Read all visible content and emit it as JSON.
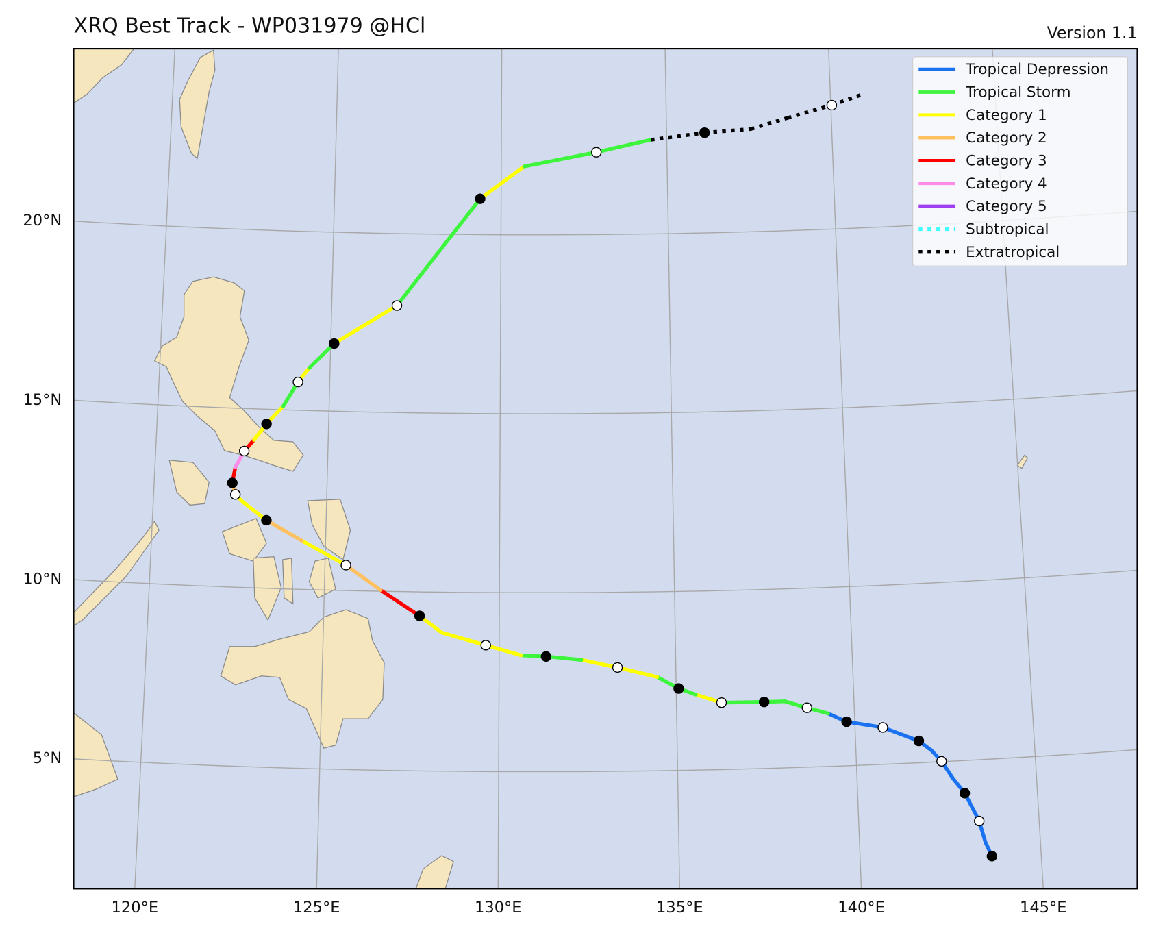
{
  "chart_data": {
    "type": "track-map",
    "title": "XRQ Best Track - WP031979  @HCl",
    "version": "Version 1.1",
    "xlim": [
      118.3,
      147.6
    ],
    "ylim": [
      1.73,
      25.2
    ],
    "xticks": [
      {
        "value": 120,
        "label": "120°E"
      },
      {
        "value": 125,
        "label": "125°E"
      },
      {
        "value": 130,
        "label": "130°E"
      },
      {
        "value": 135,
        "label": "135°E"
      },
      {
        "value": 140,
        "label": "140°E"
      },
      {
        "value": 145,
        "label": "145°E"
      }
    ],
    "yticks": [
      {
        "value": 5,
        "label": "5°N"
      },
      {
        "value": 10,
        "label": "10°N"
      },
      {
        "value": 15,
        "label": "15°N"
      },
      {
        "value": 20,
        "label": "20°N"
      }
    ],
    "grid": true,
    "legend_position": "upper right",
    "series": [
      {
        "name": "Tropical Depression",
        "color": "#1a72f0",
        "style": "solid"
      },
      {
        "name": "Tropical Storm",
        "color": "#3cf53c",
        "style": "solid"
      },
      {
        "name": "Category 1",
        "color": "#ffff00",
        "style": "solid"
      },
      {
        "name": "Category 2",
        "color": "#ffc060",
        "style": "solid"
      },
      {
        "name": "Category 3",
        "color": "#ff0000",
        "style": "solid"
      },
      {
        "name": "Category 4",
        "color": "#ff8ce8",
        "style": "solid"
      },
      {
        "name": "Category 5",
        "color": "#a040f0",
        "style": "solid"
      },
      {
        "name": "Subtropical",
        "color": "#40ffff",
        "style": "dotted"
      },
      {
        "name": "Extratropical",
        "color": "#000000",
        "style": "dotted"
      }
    ],
    "track": [
      {
        "lon": 143.64,
        "lat": 2.29,
        "status": "Tropical Depression",
        "marker": "filled"
      },
      {
        "lon": 143.48,
        "lat": 2.69,
        "status": "Tropical Depression",
        "marker": null
      },
      {
        "lon": 143.34,
        "lat": 3.29,
        "status": "Tropical Depression",
        "marker": "open"
      },
      {
        "lon": 142.98,
        "lat": 4.09,
        "status": "Tropical Depression",
        "marker": "filled"
      },
      {
        "lon": 142.67,
        "lat": 4.52,
        "status": "Tropical Depression",
        "marker": null
      },
      {
        "lon": 142.38,
        "lat": 5.01,
        "status": "Tropical Depression",
        "marker": "open"
      },
      {
        "lon": 142.11,
        "lat": 5.33,
        "status": "Tropical Depression",
        "marker": null
      },
      {
        "lon": 141.77,
        "lat": 5.61,
        "status": "Tropical Depression",
        "marker": "filled"
      },
      {
        "lon": 140.78,
        "lat": 6.03,
        "status": "Tropical Depression",
        "marker": "open"
      },
      {
        "lon": 139.77,
        "lat": 6.23,
        "status": "Tropical Depression",
        "marker": "filled"
      },
      {
        "lon": 139.26,
        "lat": 6.48,
        "status": "Tropical Storm",
        "marker": null
      },
      {
        "lon": 138.67,
        "lat": 6.66,
        "status": "Tropical Storm",
        "marker": "open"
      },
      {
        "lon": 138.05,
        "lat": 6.86,
        "status": "Tropical Storm",
        "marker": null
      },
      {
        "lon": 137.47,
        "lat": 6.86,
        "status": "Tropical Storm",
        "marker": "filled"
      },
      {
        "lon": 136.27,
        "lat": 6.87,
        "status": "Category 1",
        "marker": "open"
      },
      {
        "lon": 135.55,
        "lat": 7.11,
        "status": "Tropical Storm",
        "marker": null
      },
      {
        "lon": 135.07,
        "lat": 7.29,
        "status": "Tropical Storm",
        "marker": "filled"
      },
      {
        "lon": 134.47,
        "lat": 7.62,
        "status": "Category 1",
        "marker": null
      },
      {
        "lon": 133.35,
        "lat": 7.9,
        "status": "Category 1",
        "marker": "open"
      },
      {
        "lon": 132.33,
        "lat": 8.12,
        "status": "Tropical Storm",
        "marker": null
      },
      {
        "lon": 131.33,
        "lat": 8.22,
        "status": "Tropical Storm",
        "marker": "filled"
      },
      {
        "lon": 130.63,
        "lat": 8.25,
        "status": "Category 1",
        "marker": null
      },
      {
        "lon": 129.62,
        "lat": 8.53,
        "status": "Category 1",
        "marker": "open"
      },
      {
        "lon": 128.37,
        "lat": 8.87,
        "status": "Category 1",
        "marker": null
      },
      {
        "lon": 127.73,
        "lat": 9.33,
        "status": "Category 3",
        "marker": "filled"
      },
      {
        "lon": 126.61,
        "lat": 10.03,
        "status": "Category 2",
        "marker": null
      },
      {
        "lon": 125.6,
        "lat": 10.71,
        "status": "Category 1",
        "marker": "open"
      },
      {
        "lon": 124.32,
        "lat": 11.36,
        "status": "Category 2",
        "marker": null
      },
      {
        "lon": 123.28,
        "lat": 11.9,
        "status": "Category 1",
        "marker": "filled"
      },
      {
        "lon": 122.58,
        "lat": 12.39,
        "status": "Category 1",
        "marker": null
      },
      {
        "lon": 122.36,
        "lat": 12.59,
        "status": "Category 2",
        "marker": "open"
      },
      {
        "lon": 122.26,
        "lat": 12.91,
        "status": "Category 3",
        "marker": "filled"
      },
      {
        "lon": 122.33,
        "lat": 13.35,
        "status": "Category 4",
        "marker": null
      },
      {
        "lon": 122.57,
        "lat": 13.81,
        "status": "Category 3",
        "marker": "open"
      },
      {
        "lon": 122.84,
        "lat": 14.13,
        "status": "Category 1",
        "marker": null
      },
      {
        "lon": 123.19,
        "lat": 14.59,
        "status": "Category 1",
        "marker": "filled"
      },
      {
        "lon": 123.66,
        "lat": 15.1,
        "status": "Tropical Storm",
        "marker": null
      },
      {
        "lon": 124.07,
        "lat": 15.79,
        "status": "Category 1",
        "marker": "open"
      },
      {
        "lon": 124.39,
        "lat": 16.19,
        "status": "Tropical Storm",
        "marker": null
      },
      {
        "lon": 125.1,
        "lat": 16.89,
        "status": "Category 1",
        "marker": "filled"
      },
      {
        "lon": 126.93,
        "lat": 17.99,
        "status": "Tropical Storm",
        "marker": "open"
      },
      {
        "lon": 129.37,
        "lat": 21.0,
        "status": "Category 1",
        "marker": "filled"
      },
      {
        "lon": 130.69,
        "lat": 21.91,
        "status": "Tropical Storm",
        "marker": null
      },
      {
        "lon": 132.87,
        "lat": 22.3,
        "status": "Tropical Storm",
        "marker": "open"
      },
      {
        "lon": 134.52,
        "lat": 22.63,
        "status": "Extratropical",
        "marker": null
      },
      {
        "lon": 136.15,
        "lat": 22.8,
        "status": "Extratropical",
        "marker": "filled"
      },
      {
        "lon": 137.55,
        "lat": 22.87,
        "status": "Extratropical",
        "marker": null
      },
      {
        "lon": 138.68,
        "lat": 23.15,
        "status": "Extratropical",
        "marker": null
      },
      {
        "lon": 140.03,
        "lat": 23.46,
        "status": "Extratropical",
        "marker": "open"
      },
      {
        "lon": 140.99,
        "lat": 23.73,
        "status": "Extratropical",
        "marker": null
      }
    ]
  }
}
